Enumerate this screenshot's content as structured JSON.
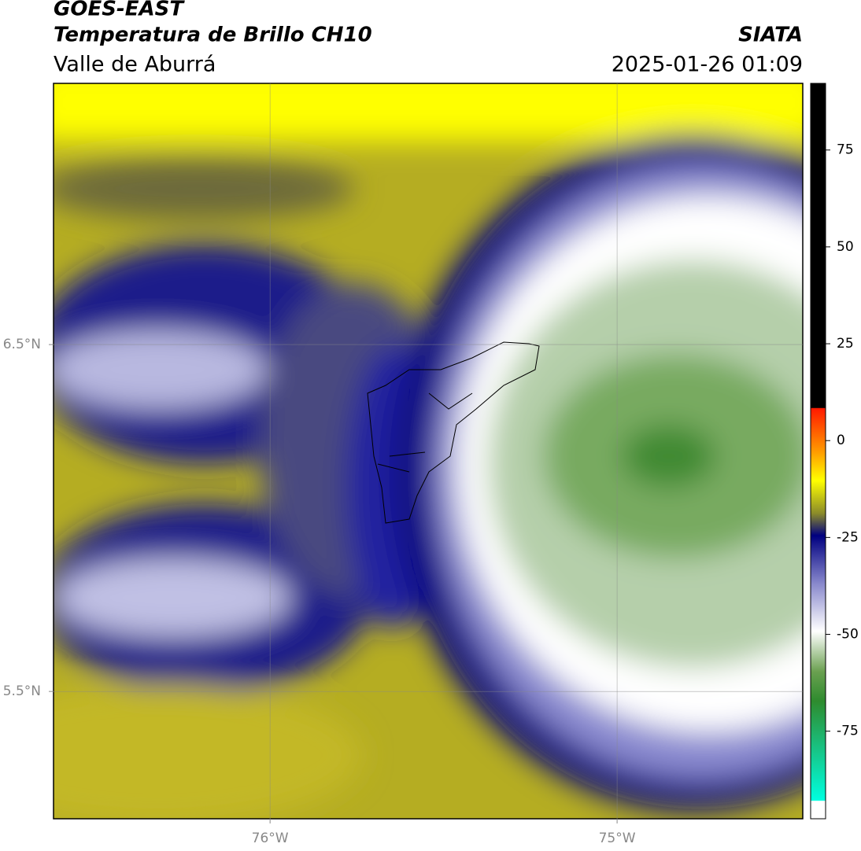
{
  "header": {
    "title": "GOES-EAST",
    "subtitle": "Temperatura de Brillo CH10",
    "region": "Valle de Aburrá",
    "brand": "SIATA",
    "datetime": "2025-01-26 01:09"
  },
  "map": {
    "lon_lim": [
      -76.624,
      -74.465
    ],
    "lat_lim": [
      5.133,
      7.253
    ],
    "lon_ticks": [
      {
        "value": -76,
        "label": "76°W"
      },
      {
        "value": -75,
        "label": "75°W"
      }
    ],
    "lat_ticks": [
      {
        "value": 6.5,
        "label": "6.5°N"
      },
      {
        "value": 5.5,
        "label": "5.5°N"
      }
    ]
  },
  "colorbar": {
    "lim": [
      -97.6,
      92.2
    ],
    "ticks": [
      75,
      50,
      25,
      0,
      -25,
      -50,
      -75
    ]
  }
}
